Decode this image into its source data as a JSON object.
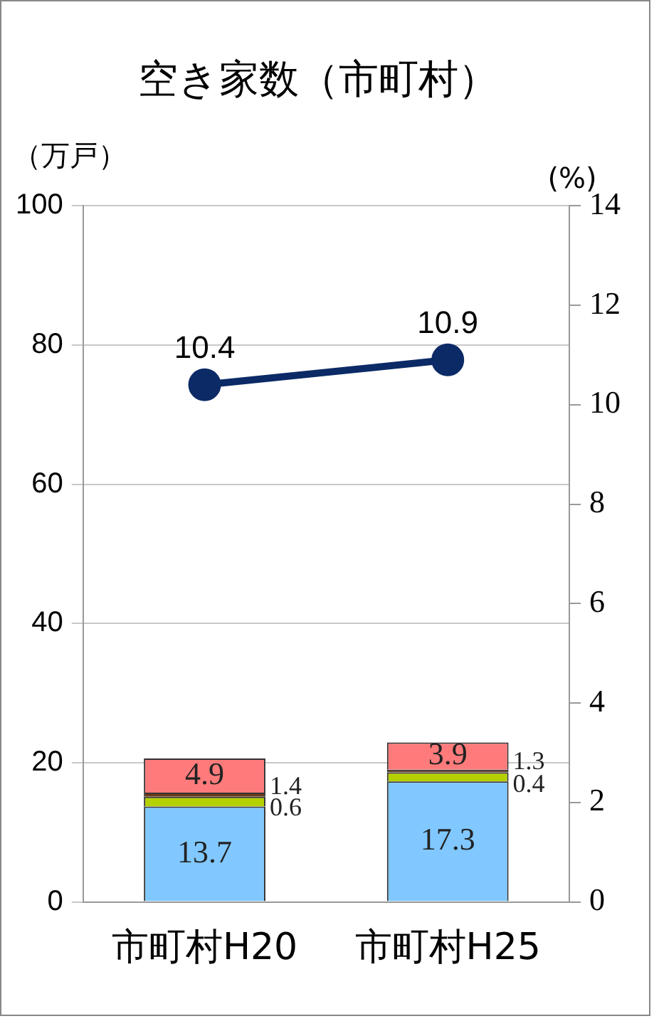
{
  "chart_data": {
    "type": "bar",
    "title": "空き家数（市町村）",
    "ylabel": "（万戸）",
    "y2label": "(%)",
    "categories": [
      "市町村H20",
      "市町村H25"
    ],
    "stacked": true,
    "series": [
      {
        "color": "#80c8ff",
        "values": [
          13.7,
          17.3
        ]
      },
      {
        "color": "#b5d000",
        "values": [
          1.4,
          1.3
        ]
      },
      {
        "color": "#6b3a1a",
        "values": [
          0.6,
          0.4
        ]
      },
      {
        "color": "#ff7b7b",
        "values": [
          4.9,
          3.9
        ]
      },
      {
        "type": "line",
        "axis": "y2",
        "color": "#0b2a66",
        "values": [
          10.4,
          10.9
        ]
      }
    ],
    "ylim": [
      0,
      100
    ],
    "yticks": [
      0,
      20,
      40,
      60,
      80,
      100
    ],
    "y2lim": [
      0,
      14
    ],
    "y2ticks": [
      0,
      2,
      4,
      6,
      8,
      10,
      12,
      14
    ],
    "grid": "y",
    "legend": false,
    "marker": "circle",
    "data_labels": true
  }
}
